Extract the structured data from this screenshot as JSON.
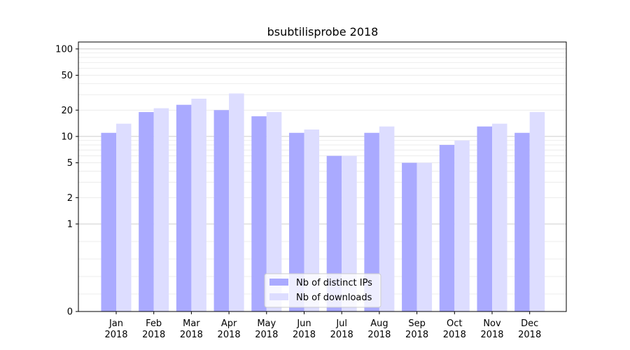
{
  "chart_data": {
    "type": "bar",
    "title": "bsubtilisprobe 2018",
    "xlabel": "",
    "ylabel": "",
    "y_scale": "symlog",
    "ylim": [
      0,
      120
    ],
    "y_ticks": [
      0,
      1,
      2,
      5,
      10,
      20,
      50,
      100
    ],
    "y_tick_labels": [
      "0",
      "1",
      "2",
      "5",
      "10",
      "20",
      "50",
      "100"
    ],
    "grid": true,
    "legend_position": "lower-center",
    "categories": [
      [
        "Jan",
        "2018"
      ],
      [
        "Feb",
        "2018"
      ],
      [
        "Mar",
        "2018"
      ],
      [
        "Apr",
        "2018"
      ],
      [
        "May",
        "2018"
      ],
      [
        "Jun",
        "2018"
      ],
      [
        "Jul",
        "2018"
      ],
      [
        "Aug",
        "2018"
      ],
      [
        "Sep",
        "2018"
      ],
      [
        "Oct",
        "2018"
      ],
      [
        "Nov",
        "2018"
      ],
      [
        "Dec",
        "2018"
      ]
    ],
    "series": [
      {
        "name": "Nb of distinct IPs",
        "color": "#aaaaff",
        "values": [
          11,
          19,
          23,
          20,
          17,
          11,
          6,
          11,
          5,
          8,
          13,
          11
        ]
      },
      {
        "name": "Nb of downloads",
        "color": "#ddddff",
        "values": [
          14,
          21,
          27,
          31,
          19,
          12,
          6,
          13,
          5,
          9,
          14,
          19
        ]
      }
    ]
  }
}
